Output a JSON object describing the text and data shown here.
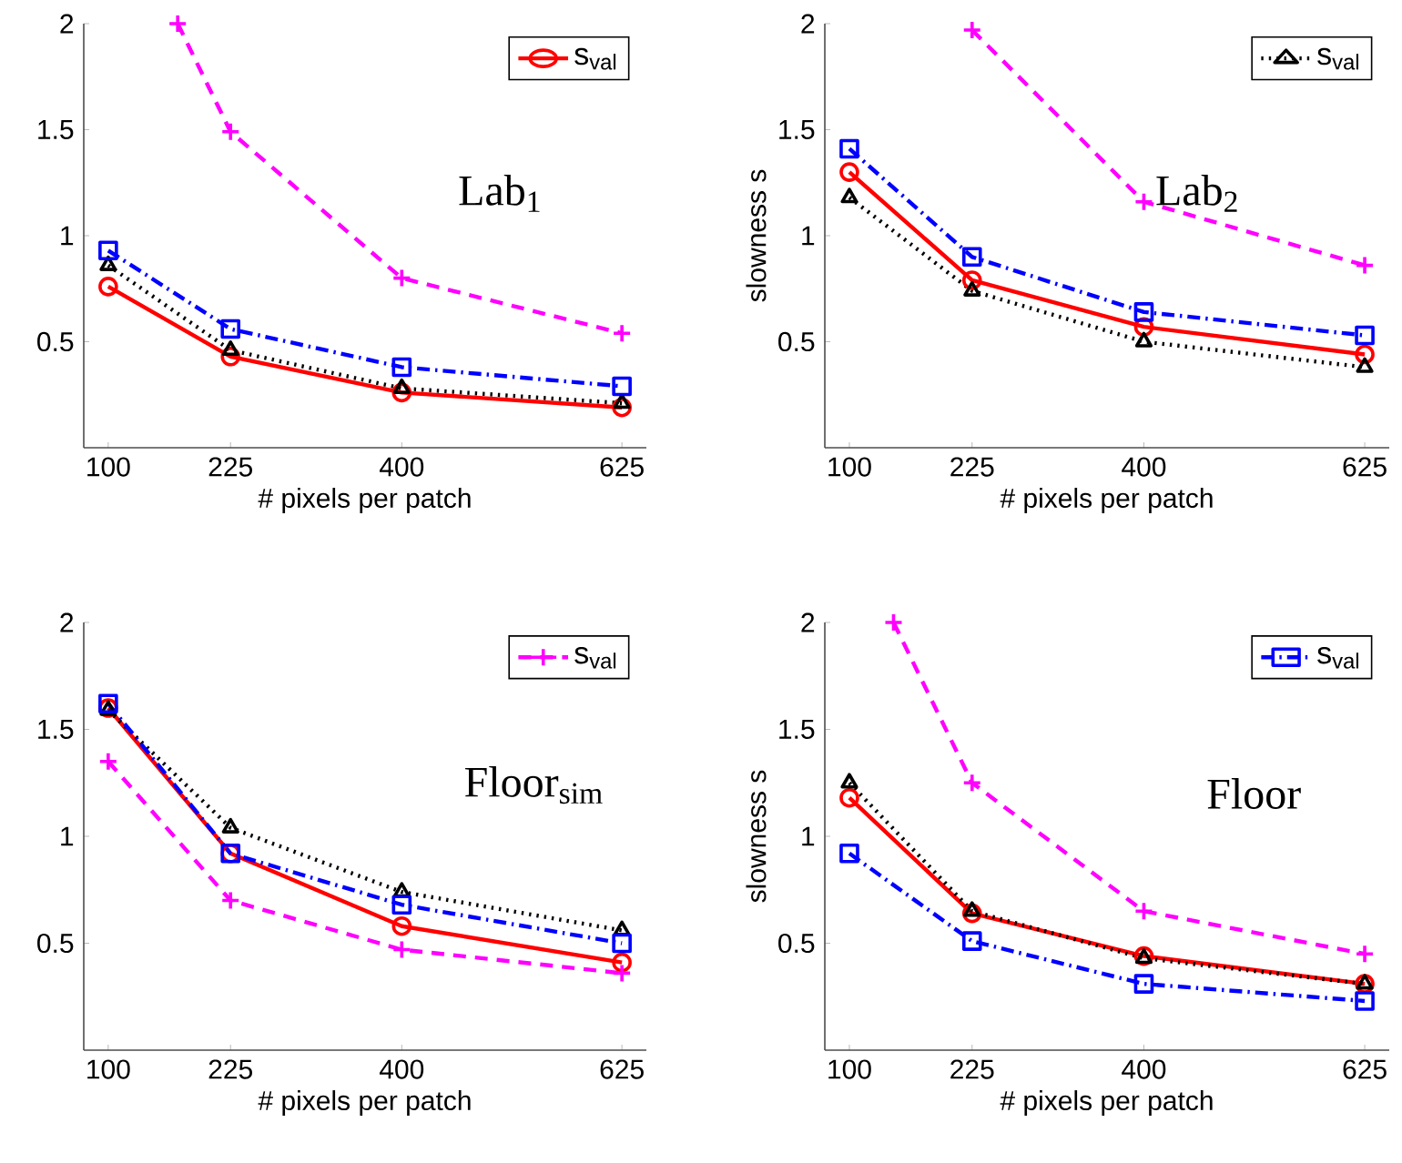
{
  "chart_data": [
    {
      "type": "line",
      "xlabel": "# pixels per patch",
      "x": [
        100,
        225,
        400,
        625
      ],
      "xlim": [
        75,
        650
      ],
      "xticks": [
        100,
        225,
        400,
        625
      ],
      "ylim": [
        0,
        2
      ],
      "yticks": [
        0.5,
        1,
        1.5,
        2
      ],
      "legend": "top right",
      "annotations": [
        "Lab$_{1}$"
      ],
      "series": [
        {
          "name": "s$_{val}$",
          "color": "#ff0000",
          "marker": "circle",
          "line_style": "solid",
          "values": [
            0.76,
            0.43,
            0.26,
            0.19
          ]
        },
        {
          "color": "#000000",
          "marker": "triangle",
          "line_style": "dotted",
          "values": [
            0.86,
            0.46,
            0.28,
            0.21
          ]
        },
        {
          "color": "#0000ff",
          "marker": "square",
          "line_style": "dashdot",
          "values": [
            0.93,
            0.56,
            0.38,
            0.29
          ]
        },
        {
          "color": "#ff00ff",
          "marker": "cross",
          "line_style": "dashed",
          "x": [
            171,
            225,
            400,
            625
          ],
          "values": [
            2,
            1.49,
            0.8,
            0.54
          ]
        }
      ]
    },
    {
      "type": "line",
      "xlabel": "# pixels per patch",
      "ylabel": "slowness s",
      "x": [
        100,
        225,
        400,
        625
      ],
      "xlim": [
        75,
        650
      ],
      "xticks": [
        100,
        225,
        400,
        625
      ],
      "ylim": [
        0,
        2
      ],
      "yticks": [
        0.5,
        1,
        1.5,
        2
      ],
      "legend": "top right",
      "annotations": [
        "Lab$_{2}$"
      ],
      "series": [
        {
          "color": "#ff0000",
          "marker": "circle",
          "line_style": "solid",
          "values": [
            1.3,
            0.79,
            0.57,
            0.44
          ]
        },
        {
          "name": "s$_{val}$",
          "color": "#000000",
          "marker": "triangle",
          "line_style": "dotted",
          "values": [
            1.18,
            0.74,
            0.5,
            0.38
          ]
        },
        {
          "color": "#0000ff",
          "marker": "square",
          "line_style": "dashdot",
          "values": [
            1.41,
            0.9,
            0.64,
            0.53
          ]
        },
        {
          "color": "#ff00ff",
          "marker": "cross",
          "line_style": "dashed",
          "values": [
            null,
            1.97,
            1.16,
            0.86
          ]
        }
      ]
    },
    {
      "type": "line",
      "xlabel": "# pixels per patch",
      "x": [
        100,
        225,
        400,
        625
      ],
      "xlim": [
        75,
        650
      ],
      "xticks": [
        100,
        225,
        400,
        625
      ],
      "ylim": [
        0,
        2
      ],
      "yticks": [
        0.5,
        1,
        1.5,
        2
      ],
      "legend": "top right",
      "annotations": [
        "Floor$_{sim}$"
      ],
      "series": [
        {
          "color": "#ff0000",
          "marker": "circle",
          "line_style": "solid",
          "values": [
            1.6,
            0.92,
            0.58,
            0.41
          ]
        },
        {
          "color": "#000000",
          "marker": "triangle",
          "line_style": "dotted",
          "values": [
            1.59,
            1.04,
            0.74,
            0.56
          ]
        },
        {
          "color": "#0000ff",
          "marker": "square",
          "line_style": "dashdot",
          "values": [
            1.62,
            0.92,
            0.68,
            0.5
          ]
        },
        {
          "name": "s$_{val}$",
          "color": "#ff00ff",
          "marker": "cross",
          "line_style": "dashed",
          "values": [
            1.35,
            0.7,
            0.47,
            0.36
          ]
        }
      ]
    },
    {
      "type": "line",
      "xlabel": "# pixels per patch",
      "ylabel": "slowness s",
      "x": [
        100,
        225,
        400,
        625
      ],
      "xlim": [
        75,
        650
      ],
      "xticks": [
        100,
        225,
        400,
        625
      ],
      "ylim": [
        0,
        2
      ],
      "yticks": [
        0.5,
        1,
        1.5,
        2
      ],
      "legend": "top right",
      "annotations": [
        "Floor"
      ],
      "series": [
        {
          "color": "#ff0000",
          "marker": "circle",
          "line_style": "solid",
          "values": [
            1.18,
            0.64,
            0.44,
            0.31
          ]
        },
        {
          "color": "#000000",
          "marker": "triangle",
          "line_style": "dotted",
          "values": [
            1.25,
            0.65,
            0.43,
            0.31
          ]
        },
        {
          "name": "s$_{val}$",
          "color": "#0000ff",
          "marker": "square",
          "line_style": "dashdot",
          "values": [
            0.92,
            0.51,
            0.31,
            0.23
          ]
        },
        {
          "color": "#ff00ff",
          "marker": "cross",
          "line_style": "dashed",
          "x": [
            145,
            225,
            400,
            625
          ],
          "values": [
            2,
            1.25,
            0.65,
            0.45
          ]
        }
      ]
    }
  ]
}
